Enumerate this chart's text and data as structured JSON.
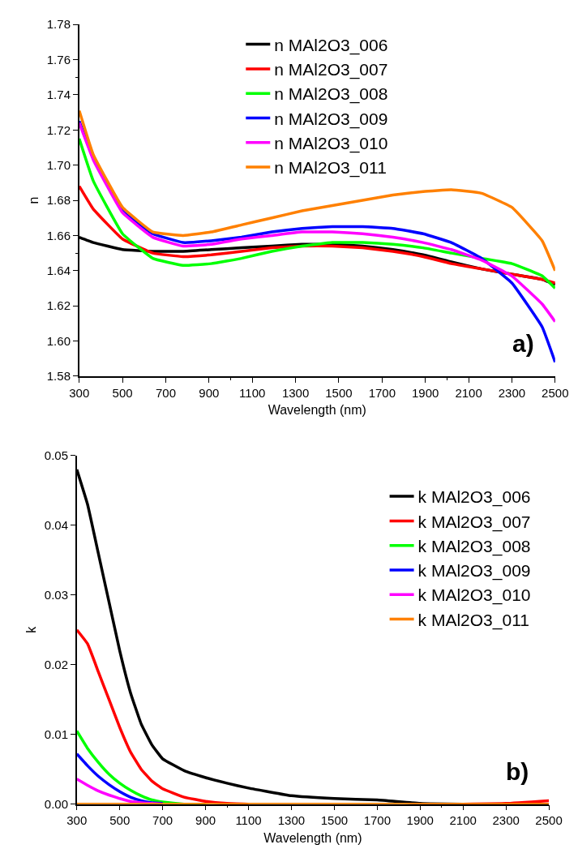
{
  "chart_data": [
    {
      "type": "line",
      "xlabel": "Wavelength (nm)",
      "ylabel": "n",
      "annotations": [
        "a)"
      ],
      "legend": "top",
      "x": [
        300,
        365,
        500,
        640,
        780,
        910,
        1050,
        1190,
        1330,
        1470,
        1610,
        1750,
        1890,
        2020,
        2160,
        2300,
        2440,
        2500
      ],
      "xlim": [
        300,
        2500
      ],
      "xticks": [
        300,
        500,
        700,
        900,
        1100,
        1300,
        1500,
        1700,
        1900,
        2100,
        2300,
        2500
      ],
      "ylim": [
        1.58,
        1.78
      ],
      "yticks": [
        1.58,
        {
          "value": 1.6,
          "label": "1.60"
        },
        1.62,
        1.64,
        1.66,
        1.68,
        {
          "value": 1.7,
          "label": "1.70"
        },
        1.72,
        1.74,
        1.76,
        1.78
      ],
      "series": [
        {
          "name": "n MAl2O3_006",
          "color": "#000000",
          "values": [
            1.659,
            1.656,
            1.652,
            1.651,
            1.651,
            1.652,
            1.653,
            1.654,
            1.655,
            1.655,
            1.654,
            1.652,
            1.649,
            1.645,
            1.641,
            1.638,
            1.635,
            1.632
          ]
        },
        {
          "name": "n MAl2O3_007",
          "color": "#ff0000",
          "values": [
            1.688,
            1.675,
            1.658,
            1.65,
            1.648,
            1.649,
            1.651,
            1.653,
            1.654,
            1.654,
            1.653,
            1.651,
            1.648,
            1.644,
            1.641,
            1.638,
            1.635,
            1.633
          ]
        },
        {
          "name": "n MAl2O3_008",
          "color": "#00ff00",
          "values": [
            1.715,
            1.691,
            1.661,
            1.647,
            1.643,
            1.644,
            1.647,
            1.651,
            1.654,
            1.656,
            1.656,
            1.655,
            1.653,
            1.65,
            1.647,
            1.644,
            1.637,
            1.63
          ]
        },
        {
          "name": "n MAl2O3_009",
          "color": "#0000ff",
          "values": [
            1.725,
            1.704,
            1.674,
            1.661,
            1.656,
            1.657,
            1.659,
            1.662,
            1.664,
            1.665,
            1.665,
            1.664,
            1.661,
            1.656,
            1.647,
            1.633,
            1.608,
            1.588
          ]
        },
        {
          "name": "n MAl2O3_010",
          "color": "#ff00ff",
          "values": [
            1.724,
            1.703,
            1.673,
            1.659,
            1.654,
            1.655,
            1.658,
            1.66,
            1.662,
            1.662,
            1.661,
            1.659,
            1.656,
            1.652,
            1.646,
            1.637,
            1.621,
            1.611
          ]
        },
        {
          "name": "n MAl2O3_011",
          "color": "#ff8000",
          "values": [
            1.731,
            1.706,
            1.676,
            1.662,
            1.66,
            1.662,
            1.666,
            1.67,
            1.674,
            1.677,
            1.68,
            1.683,
            1.685,
            1.686,
            1.684,
            1.676,
            1.657,
            1.64
          ]
        }
      ]
    },
    {
      "type": "line",
      "xlabel": "Wavelength (nm)",
      "ylabel": "k",
      "annotations": [
        "b)"
      ],
      "legend": "top right",
      "x": [
        300,
        350,
        400,
        450,
        500,
        550,
        600,
        650,
        700,
        800,
        900,
        1000,
        1100,
        1300,
        1500,
        1700,
        1900,
        2100,
        2300,
        2500
      ],
      "xlim": [
        300,
        2500
      ],
      "xticks": [
        300,
        500,
        700,
        900,
        1100,
        1300,
        1500,
        1700,
        1900,
        2100,
        2300,
        2500
      ],
      "ylim": [
        0,
        0.05
      ],
      "yticks": [
        {
          "value": 0,
          "label": "0.00"
        },
        0.01,
        0.02,
        0.03,
        0.04,
        0.05
      ],
      "series": [
        {
          "name": "k MAl2O3_006",
          "color": "#000000",
          "values": [
            0.048,
            0.043,
            0.036,
            0.029,
            0.022,
            0.016,
            0.0115,
            0.0085,
            0.0065,
            0.0048,
            0.0038,
            0.003,
            0.0023,
            0.0012,
            0.0008,
            0.0006,
            0.0001,
            0,
            0,
            0
          ]
        },
        {
          "name": "k MAl2O3_007",
          "color": "#ff0000",
          "values": [
            0.025,
            0.023,
            0.019,
            0.015,
            0.011,
            0.0075,
            0.005,
            0.0033,
            0.0022,
            0.001,
            0.0004,
            0.0001,
            0,
            null,
            null,
            null,
            null,
            0,
            0.0001,
            0.0005
          ]
        },
        {
          "name": "k MAl2O3_008",
          "color": "#00ff00",
          "values": [
            0.0105,
            0.008,
            0.006,
            0.0043,
            0.003,
            0.002,
            0.0012,
            0.0006,
            0.0003,
            0,
            0,
            null,
            null,
            null,
            null,
            null,
            null,
            null,
            null,
            null
          ]
        },
        {
          "name": "k MAl2O3_009",
          "color": "#0000ff",
          "values": [
            0.0072,
            0.0055,
            0.004,
            0.0028,
            0.0018,
            0.001,
            0.0005,
            0.0002,
            0.0001,
            null,
            null,
            null,
            null,
            null,
            null,
            null,
            null,
            null,
            null,
            null
          ]
        },
        {
          "name": "k MAl2O3_010",
          "color": "#ff00ff",
          "values": [
            0.0036,
            0.0027,
            0.0019,
            0.0013,
            0.0008,
            0.0004,
            0.0002,
            0.0001,
            0,
            null,
            null,
            null,
            null,
            null,
            null,
            null,
            null,
            null,
            null,
            null
          ]
        },
        {
          "name": "k MAl2O3_011",
          "color": "#ff8000",
          "values": [
            0,
            0,
            0,
            0,
            0,
            0,
            0,
            0,
            0,
            0,
            0,
            0,
            0,
            0,
            0,
            0,
            0,
            0,
            0,
            0
          ]
        }
      ]
    }
  ]
}
